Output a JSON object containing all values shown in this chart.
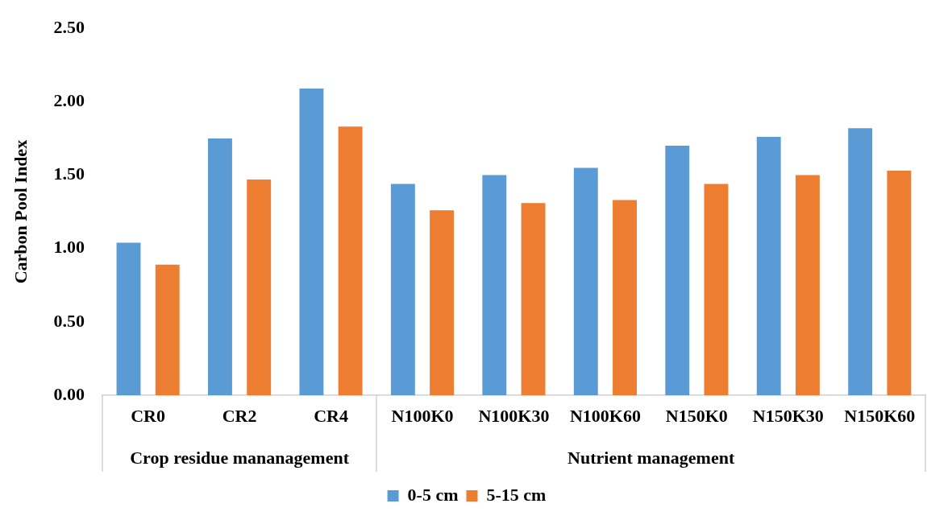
{
  "chart_data": {
    "type": "bar",
    "ylabel": "Carbon Pool Index",
    "categories": [
      "CR0",
      "CR2",
      "CR4",
      "N100K0",
      "N100K30",
      "N100K60",
      "N150K0",
      "N150K30",
      "N150K60"
    ],
    "series": [
      {
        "name": "0-5 cm",
        "color": "#5b9bd5",
        "values": [
          1.04,
          1.75,
          2.09,
          1.44,
          1.5,
          1.55,
          1.7,
          1.76,
          1.82
        ]
      },
      {
        "name": "5-15 cm",
        "color": "#ed7d31",
        "values": [
          0.89,
          1.47,
          1.83,
          1.26,
          1.31,
          1.33,
          1.44,
          1.5,
          1.53
        ]
      }
    ],
    "annotations": [
      "Crop residue mananagement",
      "Nutrient management"
    ],
    "ylim": [
      0,
      2.5
    ],
    "yticks": [
      {
        "value": 0,
        "label": "0.00"
      },
      {
        "value": 0.5,
        "label": "0.50"
      },
      {
        "value": 1,
        "label": "1.00"
      },
      {
        "value": 1.5,
        "label": "1.50"
      },
      {
        "value": 2,
        "label": "2.00"
      },
      {
        "value": 2.5,
        "label": "2.50"
      }
    ],
    "grid": false,
    "legend": "bottom"
  }
}
